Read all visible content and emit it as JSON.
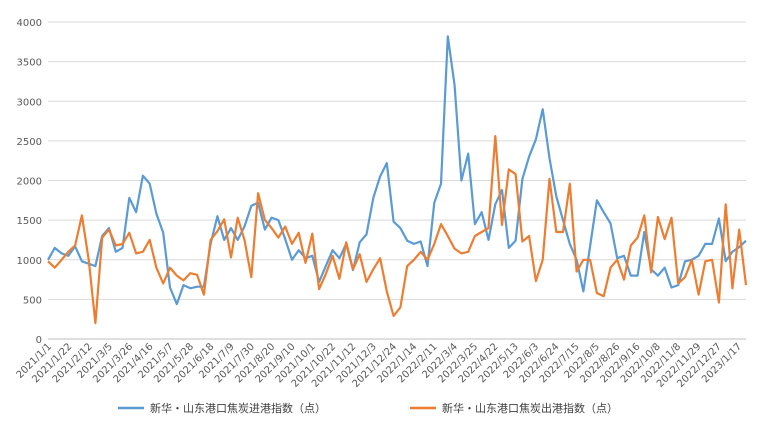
{
  "chart_data": {
    "type": "line",
    "title": "",
    "xlabel": "",
    "ylabel": "",
    "ylim": [
      0,
      4000
    ],
    "yticks": [
      0,
      500,
      1000,
      1500,
      2000,
      2500,
      3000,
      3500,
      4000
    ],
    "grid": "horizontal",
    "legend_position": "bottom",
    "x_tick_labels": [
      "2021/1/1",
      "2021/1/22",
      "2021/2/12",
      "2021/3/5",
      "2021/3/26",
      "2021/4/16",
      "2021/5/7",
      "2021/5/28",
      "2021/6/18",
      "2021/7/9",
      "2021/7/30",
      "2021/8/20",
      "2021/9/10",
      "2021/10/1",
      "2021/10/22",
      "2021/11/12",
      "2021/12/3",
      "2021/12/24",
      "2022/1/14",
      "2022/2/11",
      "2022/3/4",
      "2022/3/25",
      "2022/4/22",
      "2022/5/13",
      "2022/6/3",
      "2022/6/24",
      "2022/7/15",
      "2022/8/5",
      "2022/8/26",
      "2022/9/16",
      "2022/10/8",
      "2022/11/8",
      "2022/11/29",
      "2022/12/27",
      "2023/1/17"
    ],
    "series": [
      {
        "name": "新华・山东港口焦炭进港指数（点）",
        "color": "#5b9bd5",
        "values": [
          1000,
          1150,
          1080,
          1050,
          1170,
          980,
          950,
          920,
          1300,
          1400,
          1100,
          1150,
          1780,
          1600,
          2060,
          1960,
          1580,
          1340,
          650,
          440,
          680,
          640,
          660,
          660,
          1200,
          1550,
          1250,
          1400,
          1250,
          1420,
          1680,
          1720,
          1380,
          1530,
          1500,
          1260,
          1000,
          1120,
          1020,
          1050,
          720,
          920,
          1120,
          1020,
          1200,
          870,
          1220,
          1320,
          1780,
          2050,
          2220,
          1480,
          1400,
          1240,
          1200,
          1230,
          920,
          1720,
          1960,
          3820,
          3200,
          2000,
          2340,
          1450,
          1600,
          1250,
          1700,
          1880,
          1150,
          1240,
          2020,
          2300,
          2520,
          2900,
          2280,
          1800,
          1500,
          1200,
          1000,
          600,
          1170,
          1750,
          1600,
          1460,
          1020,
          1050,
          800,
          800,
          1350,
          880,
          800,
          900,
          650,
          680,
          980,
          1000,
          1050,
          1200,
          1200,
          1520,
          980,
          1100,
          1160,
          1240
        ]
      },
      {
        "name": "新华・山东港口焦炭出港指数（点）",
        "color": "#ed7d31",
        "values": [
          980,
          900,
          1000,
          1100,
          1180,
          1560,
          1000,
          200,
          1280,
          1380,
          1180,
          1200,
          1340,
          1080,
          1100,
          1250,
          900,
          700,
          900,
          800,
          740,
          830,
          810,
          560,
          1250,
          1360,
          1510,
          1030,
          1530,
          1250,
          780,
          1840,
          1500,
          1400,
          1280,
          1420,
          1200,
          1340,
          960,
          1330,
          630,
          820,
          1050,
          760,
          1220,
          880,
          1070,
          720,
          880,
          1020,
          600,
          290,
          400,
          920,
          1000,
          1100,
          1000,
          1200,
          1450,
          1300,
          1140,
          1080,
          1100,
          1300,
          1350,
          1400,
          2560,
          1440,
          2140,
          2080,
          1230,
          1300,
          730,
          1000,
          2020,
          1350,
          1350,
          1960,
          850,
          1000,
          1000,
          580,
          540,
          900,
          1000,
          750,
          1180,
          1280,
          1560,
          840,
          1540,
          1260,
          1530,
          700,
          780,
          1000,
          560,
          980,
          1000,
          460,
          1700,
          640,
          1380,
          680
        ]
      }
    ]
  }
}
